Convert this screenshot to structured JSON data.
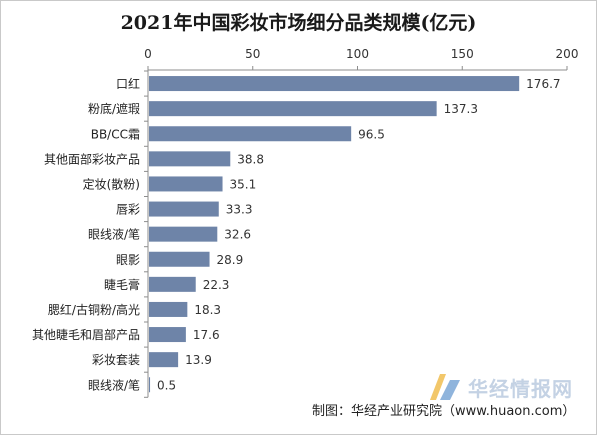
{
  "chart_data": {
    "type": "bar",
    "orientation": "horizontal",
    "title": "2021年中国彩妆市场细分品类规模(亿元)",
    "categories": [
      "口红",
      "粉底/遮瑕",
      "BB/CC霜",
      "其他面部彩妆产品",
      "定妆(散粉)",
      "唇彩",
      "眼线液/笔",
      "眼影",
      "睫毛膏",
      "腮红/古铜粉/高光",
      "其他睫毛和眉部产品",
      "彩妆套装",
      "眼线液/笔"
    ],
    "values": [
      176.7,
      137.3,
      96.5,
      38.8,
      35.1,
      33.3,
      32.6,
      28.9,
      22.3,
      18.3,
      17.6,
      13.9,
      0.5
    ],
    "value_labels": [
      "176.7",
      "137.3",
      "96.5",
      "38.8",
      "35.1",
      "33.3",
      "32.6",
      "28.9",
      "22.3",
      "18.3",
      "17.6",
      "13.9",
      "0.5"
    ],
    "xlim": [
      0,
      200
    ],
    "ticks": [
      0,
      50,
      100,
      150,
      200
    ],
    "tick_labels": [
      "0",
      "50",
      "100",
      "150",
      "200"
    ],
    "axis_position": "top",
    "grid": false,
    "legend": "none",
    "bar_color": "#6e84a8"
  },
  "watermark": {
    "text": "华经情报网",
    "logo_colors": [
      "#f2c76a",
      "#8fb4dc"
    ]
  },
  "source": {
    "text": "制图：华经产业研究院（www.huaon.com）"
  }
}
